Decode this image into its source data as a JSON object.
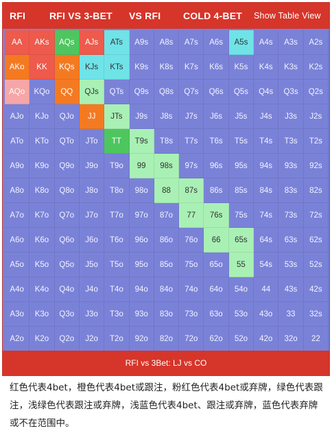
{
  "tabs": [
    "RFI",
    "RFI VS 3-BET",
    "VS RFI",
    "COLD 4-BET"
  ],
  "show_table_view": "Show Table View",
  "footer": "RFI vs 3Bet: LJ vs CO",
  "caption": "红色代表4bet，橙色代表4bet或跟注，粉红色代表4bet或弃牌，绿色代表跟注，浅绿色代表跟注或弃牌，浅蓝色代表4bet、跟注或弃牌，蓝色代表弃牌或不在范围中。",
  "colors": {
    "red": "#ee5a4c",
    "orange": "#f47a22",
    "pink": "#f6a6a6",
    "green": "#4ec65f",
    "lightgreen": "#a9f0b5",
    "lightblue": "#6fe3e8",
    "blue": "#7a82d8",
    "bar": "#d6352a"
  },
  "grid": [
    [
      [
        "AA",
        "red"
      ],
      [
        "AKs",
        "red"
      ],
      [
        "AQs",
        "green"
      ],
      [
        "AJs",
        "red"
      ],
      [
        "ATs",
        "lightblue"
      ],
      [
        "A9s",
        "blue"
      ],
      [
        "A8s",
        "blue"
      ],
      [
        "A7s",
        "blue"
      ],
      [
        "A6s",
        "blue"
      ],
      [
        "A5s",
        "lightblue"
      ],
      [
        "A4s",
        "blue"
      ],
      [
        "A3s",
        "blue"
      ],
      [
        "A2s",
        "blue"
      ]
    ],
    [
      [
        "AKo",
        "orange"
      ],
      [
        "KK",
        "red"
      ],
      [
        "KQs",
        "orange"
      ],
      [
        "KJs",
        "lightblue"
      ],
      [
        "KTs",
        "lightblue"
      ],
      [
        "K9s",
        "blue"
      ],
      [
        "K8s",
        "blue"
      ],
      [
        "K7s",
        "blue"
      ],
      [
        "K6s",
        "blue"
      ],
      [
        "K5s",
        "blue"
      ],
      [
        "K4s",
        "blue"
      ],
      [
        "K3s",
        "blue"
      ],
      [
        "K2s",
        "blue"
      ]
    ],
    [
      [
        "AQo",
        "pink"
      ],
      [
        "KQo",
        "blue"
      ],
      [
        "QQ",
        "orange"
      ],
      [
        "QJs",
        "lightgreen"
      ],
      [
        "QTs",
        "blue"
      ],
      [
        "Q9s",
        "blue"
      ],
      [
        "Q8s",
        "blue"
      ],
      [
        "Q7s",
        "blue"
      ],
      [
        "Q6s",
        "blue"
      ],
      [
        "Q5s",
        "blue"
      ],
      [
        "Q4s",
        "blue"
      ],
      [
        "Q3s",
        "blue"
      ],
      [
        "Q2s",
        "blue"
      ]
    ],
    [
      [
        "AJo",
        "blue"
      ],
      [
        "KJo",
        "blue"
      ],
      [
        "QJo",
        "blue"
      ],
      [
        "JJ",
        "orange"
      ],
      [
        "JTs",
        "lightgreen"
      ],
      [
        "J9s",
        "blue"
      ],
      [
        "J8s",
        "blue"
      ],
      [
        "J7s",
        "blue"
      ],
      [
        "J6s",
        "blue"
      ],
      [
        "J5s",
        "blue"
      ],
      [
        "J4s",
        "blue"
      ],
      [
        "J3s",
        "blue"
      ],
      [
        "J2s",
        "blue"
      ]
    ],
    [
      [
        "ATo",
        "blue"
      ],
      [
        "KTo",
        "blue"
      ],
      [
        "QTo",
        "blue"
      ],
      [
        "JTo",
        "blue"
      ],
      [
        "TT",
        "green"
      ],
      [
        "T9s",
        "lightgreen"
      ],
      [
        "T8s",
        "blue"
      ],
      [
        "T7s",
        "blue"
      ],
      [
        "T6s",
        "blue"
      ],
      [
        "T5s",
        "blue"
      ],
      [
        "T4s",
        "blue"
      ],
      [
        "T3s",
        "blue"
      ],
      [
        "T2s",
        "blue"
      ]
    ],
    [
      [
        "A9o",
        "blue"
      ],
      [
        "K9o",
        "blue"
      ],
      [
        "Q9o",
        "blue"
      ],
      [
        "J9o",
        "blue"
      ],
      [
        "T9o",
        "blue"
      ],
      [
        "99",
        "lightgreen"
      ],
      [
        "98s",
        "lightgreen"
      ],
      [
        "97s",
        "blue"
      ],
      [
        "96s",
        "blue"
      ],
      [
        "95s",
        "blue"
      ],
      [
        "94s",
        "blue"
      ],
      [
        "93s",
        "blue"
      ],
      [
        "92s",
        "blue"
      ]
    ],
    [
      [
        "A8o",
        "blue"
      ],
      [
        "K8o",
        "blue"
      ],
      [
        "Q8o",
        "blue"
      ],
      [
        "J8o",
        "blue"
      ],
      [
        "T8o",
        "blue"
      ],
      [
        "98o",
        "blue"
      ],
      [
        "88",
        "lightgreen"
      ],
      [
        "87s",
        "lightgreen"
      ],
      [
        "86s",
        "blue"
      ],
      [
        "85s",
        "blue"
      ],
      [
        "84s",
        "blue"
      ],
      [
        "83s",
        "blue"
      ],
      [
        "82s",
        "blue"
      ]
    ],
    [
      [
        "A7o",
        "blue"
      ],
      [
        "K7o",
        "blue"
      ],
      [
        "Q7o",
        "blue"
      ],
      [
        "J7o",
        "blue"
      ],
      [
        "T7o",
        "blue"
      ],
      [
        "97o",
        "blue"
      ],
      [
        "87o",
        "blue"
      ],
      [
        "77",
        "lightgreen"
      ],
      [
        "76s",
        "lightgreen"
      ],
      [
        "75s",
        "blue"
      ],
      [
        "74s",
        "blue"
      ],
      [
        "73s",
        "blue"
      ],
      [
        "72s",
        "blue"
      ]
    ],
    [
      [
        "A6o",
        "blue"
      ],
      [
        "K6o",
        "blue"
      ],
      [
        "Q6o",
        "blue"
      ],
      [
        "J6o",
        "blue"
      ],
      [
        "T6o",
        "blue"
      ],
      [
        "96o",
        "blue"
      ],
      [
        "86o",
        "blue"
      ],
      [
        "76o",
        "blue"
      ],
      [
        "66",
        "lightgreen"
      ],
      [
        "65s",
        "lightgreen"
      ],
      [
        "64s",
        "blue"
      ],
      [
        "63s",
        "blue"
      ],
      [
        "62s",
        "blue"
      ]
    ],
    [
      [
        "A5o",
        "blue"
      ],
      [
        "K5o",
        "blue"
      ],
      [
        "Q5o",
        "blue"
      ],
      [
        "J5o",
        "blue"
      ],
      [
        "T5o",
        "blue"
      ],
      [
        "95o",
        "blue"
      ],
      [
        "85o",
        "blue"
      ],
      [
        "75o",
        "blue"
      ],
      [
        "65o",
        "blue"
      ],
      [
        "55",
        "lightgreen"
      ],
      [
        "54s",
        "blue"
      ],
      [
        "53s",
        "blue"
      ],
      [
        "52s",
        "blue"
      ]
    ],
    [
      [
        "A4o",
        "blue"
      ],
      [
        "K4o",
        "blue"
      ],
      [
        "Q4o",
        "blue"
      ],
      [
        "J4o",
        "blue"
      ],
      [
        "T4o",
        "blue"
      ],
      [
        "94o",
        "blue"
      ],
      [
        "84o",
        "blue"
      ],
      [
        "74o",
        "blue"
      ],
      [
        "64o",
        "blue"
      ],
      [
        "54o",
        "blue"
      ],
      [
        "44",
        "blue"
      ],
      [
        "43s",
        "blue"
      ],
      [
        "42s",
        "blue"
      ]
    ],
    [
      [
        "A3o",
        "blue"
      ],
      [
        "K3o",
        "blue"
      ],
      [
        "Q3o",
        "blue"
      ],
      [
        "J3o",
        "blue"
      ],
      [
        "T3o",
        "blue"
      ],
      [
        "93o",
        "blue"
      ],
      [
        "83o",
        "blue"
      ],
      [
        "73o",
        "blue"
      ],
      [
        "63o",
        "blue"
      ],
      [
        "53o",
        "blue"
      ],
      [
        "43o",
        "blue"
      ],
      [
        "33",
        "blue"
      ],
      [
        "32s",
        "blue"
      ]
    ],
    [
      [
        "A2o",
        "blue"
      ],
      [
        "K2o",
        "blue"
      ],
      [
        "Q2o",
        "blue"
      ],
      [
        "J2o",
        "blue"
      ],
      [
        "T2o",
        "blue"
      ],
      [
        "92o",
        "blue"
      ],
      [
        "82o",
        "blue"
      ],
      [
        "72o",
        "blue"
      ],
      [
        "62o",
        "blue"
      ],
      [
        "52o",
        "blue"
      ],
      [
        "42o",
        "blue"
      ],
      [
        "32o",
        "blue"
      ],
      [
        "22",
        "blue"
      ]
    ]
  ]
}
